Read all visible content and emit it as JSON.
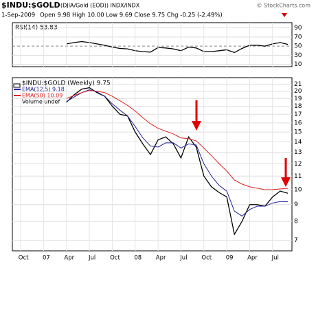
{
  "header": {
    "symbol": "$INDU:$GOLD",
    "description": "(DJIA/Gold (EOD)) INDX/INDX",
    "source": "© StockCharts.com",
    "date": "1-Sep-2009",
    "quote": "Open 9.98  High 10.00  Low 9.69  Close 9.75  Chg -0.25 (-2.49%)"
  },
  "chart_data": [
    {
      "type": "line",
      "title": "RSI(14) 53.83",
      "x": [
        "2007-04",
        "2007-05",
        "2007-06",
        "2007-07",
        "2007-08",
        "2007-09",
        "2007-10",
        "2007-11",
        "2007-12",
        "2008-01",
        "2008-02",
        "2008-03",
        "2008-04",
        "2008-05",
        "2008-06",
        "2008-07",
        "2008-08",
        "2008-09",
        "2008-10",
        "2008-11",
        "2008-12",
        "2009-01",
        "2009-02",
        "2009-03",
        "2009-04",
        "2009-05",
        "2009-06",
        "2009-07",
        "2009-08",
        "2009-09"
      ],
      "series": [
        {
          "name": "RSI(14)",
          "color": "#000000",
          "values": [
            55,
            58,
            60,
            58,
            55,
            52,
            48,
            45,
            44,
            40,
            38,
            37,
            47,
            46,
            44,
            40,
            48,
            46,
            38,
            38,
            40,
            42,
            36,
            45,
            52,
            52,
            50,
            55,
            58,
            53.83
          ]
        }
      ],
      "xlim": [
        "2006-09",
        "2009-09"
      ],
      "ylim": [
        5,
        97
      ],
      "yticks": [
        90,
        70,
        50,
        30,
        10
      ],
      "grid": true
    },
    {
      "type": "line",
      "title": "$INDU:$GOLD (Weekly) 9.75",
      "log_scale": true,
      "legend": "top-left",
      "x": [
        "2007-04",
        "2007-05",
        "2007-06",
        "2007-07",
        "2007-08",
        "2007-09",
        "2007-10",
        "2007-11",
        "2007-12",
        "2008-01",
        "2008-02",
        "2008-03",
        "2008-04",
        "2008-05",
        "2008-06",
        "2008-07",
        "2008-08",
        "2008-09",
        "2008-10",
        "2008-11",
        "2008-12",
        "2009-01",
        "2009-02",
        "2009-03",
        "2009-04",
        "2009-05",
        "2009-06",
        "2009-07",
        "2009-08",
        "2009-09"
      ],
      "series": [
        {
          "name": "$INDU:$GOLD (Weekly) 9.75",
          "color": "#000000",
          "values": [
            18.5,
            19.5,
            20.3,
            20.5,
            19.8,
            19.3,
            18.0,
            17.0,
            16.8,
            15.0,
            13.8,
            12.8,
            14.2,
            14.5,
            13.8,
            12.5,
            14.5,
            13.5,
            11.0,
            10.2,
            9.8,
            9.5,
            7.3,
            8.0,
            9.0,
            9.0,
            8.9,
            9.5,
            9.9,
            9.75
          ]
        },
        {
          "name": "EMA(12,5) 9.18",
          "color": "#1f1f99",
          "values": [
            18.6,
            19.2,
            19.8,
            20.2,
            19.9,
            19.3,
            18.3,
            17.5,
            16.8,
            15.6,
            14.4,
            13.6,
            13.5,
            13.9,
            13.9,
            13.4,
            13.8,
            13.7,
            12.0,
            11.0,
            10.3,
            9.9,
            8.6,
            8.3,
            8.7,
            8.9,
            8.9,
            9.1,
            9.2,
            9.18
          ]
        },
        {
          "name": "EMA(50) 10.09",
          "color": "#dd2222",
          "values": [
            19.0,
            19.4,
            19.8,
            20.1,
            20.0,
            19.8,
            19.3,
            18.7,
            18.1,
            17.4,
            16.6,
            15.9,
            15.4,
            15.1,
            14.8,
            14.4,
            14.3,
            14.1,
            13.4,
            12.7,
            12.0,
            11.4,
            10.7,
            10.4,
            10.2,
            10.1,
            10.0,
            10.0,
            10.05,
            10.09
          ]
        }
      ],
      "extra_legend": "Volume undef",
      "xlim": [
        "2006-09",
        "2009-09"
      ],
      "ylim": [
        6.5,
        22
      ],
      "yticks": [
        21,
        20,
        19,
        18,
        17,
        16,
        15,
        14,
        13,
        12,
        11,
        10,
        9,
        8,
        7
      ],
      "xticks": [
        {
          "value": "2006-10",
          "label": "Oct"
        },
        {
          "value": "2007-01",
          "label": "07"
        },
        {
          "value": "2007-04",
          "label": "Apr"
        },
        {
          "value": "2007-07",
          "label": "Jul"
        },
        {
          "value": "2007-10",
          "label": "Oct"
        },
        {
          "value": "2008-01",
          "label": "08"
        },
        {
          "value": "2008-04",
          "label": "Apr"
        },
        {
          "value": "2008-07",
          "label": "Jul"
        },
        {
          "value": "2008-10",
          "label": "Oct"
        },
        {
          "value": "2009-01",
          "label": "09"
        },
        {
          "value": "2009-04",
          "label": "Apr"
        },
        {
          "value": "2009-07",
          "label": "Jul"
        }
      ],
      "grid": true
    }
  ]
}
